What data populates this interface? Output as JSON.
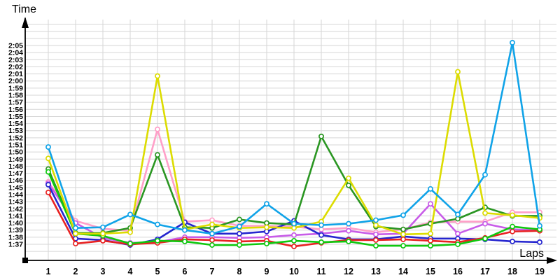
{
  "chart_data": {
    "type": "line",
    "title": "",
    "xlabel": "Laps",
    "ylabel": "Time",
    "legend": "none",
    "grid": true,
    "x": [
      1,
      2,
      3,
      4,
      5,
      6,
      7,
      8,
      9,
      10,
      11,
      12,
      13,
      14,
      15,
      16,
      17,
      18,
      19
    ],
    "y_axis": {
      "unit": "m:ss",
      "tick_labels": [
        "1:37",
        "1:38",
        "1:39",
        "1:40",
        "1:41",
        "1:42",
        "1:43",
        "1:44",
        "1:45",
        "1:46",
        "1:47",
        "1:48",
        "1:49",
        "1:50",
        "1:51",
        "1:52",
        "1:53",
        "1:54",
        "1:55",
        "1:56",
        "1:57",
        "1:58",
        "1:59",
        "2:00",
        "2:01",
        "2:02",
        "2:03",
        "2:04",
        "2:05"
      ],
      "tick_seconds_start": 97,
      "ylim_seconds": [
        96,
        128.5
      ]
    },
    "series": [
      {
        "name": "pink",
        "color": "#FF9FC8",
        "values_seconds": [
          105.8,
          100.3,
          99.2,
          98.9,
          113.2,
          100.2,
          100.4,
          99.6,
          99.6,
          99.5,
          99.1,
          99.3,
          98.7,
          99.1,
          100.1,
          100.2,
          100.2,
          101.5,
          101.5
        ]
      },
      {
        "name": "violet",
        "color": "#C85CE8",
        "values_seconds": [
          105.6,
          100.0,
          97.9,
          97.2,
          97.3,
          98.0,
          98.0,
          97.9,
          98.0,
          98.3,
          98.5,
          98.9,
          98.4,
          98.5,
          102.7,
          98.5,
          99.9,
          99.1,
          99.0
        ]
      },
      {
        "name": "navy-blue",
        "color": "#2525CF",
        "values_seconds": [
          105.4,
          97.8,
          97.6,
          96.9,
          97.7,
          100.1,
          98.5,
          98.5,
          98.8,
          100.3,
          98.3,
          97.7,
          97.7,
          98.1,
          97.8,
          97.8,
          97.7,
          97.4,
          97.3
        ]
      },
      {
        "name": "red",
        "color": "#E82222",
        "values_seconds": [
          104.3,
          97.1,
          97.5,
          97.0,
          97.2,
          97.7,
          97.6,
          97.4,
          97.5,
          96.7,
          97.2,
          97.6,
          97.6,
          97.7,
          97.5,
          97.3,
          97.9,
          98.8,
          98.9
        ]
      },
      {
        "name": "dark-green",
        "color": "#2A9622",
        "values_seconds": [
          107.6,
          98.6,
          98.6,
          99.3,
          109.6,
          99.4,
          99.3,
          100.5,
          100.0,
          99.8,
          112.2,
          105.3,
          99.5,
          99.1,
          99.9,
          100.6,
          102.2,
          101.0,
          101.0
        ]
      },
      {
        "name": "bright-green",
        "color": "#0FC80F",
        "values_seconds": [
          107.2,
          98.5,
          98.2,
          97.1,
          97.5,
          97.4,
          96.9,
          96.9,
          97.1,
          97.5,
          97.3,
          97.4,
          96.8,
          96.8,
          96.8,
          97.0,
          97.8,
          99.5,
          99.1
        ]
      },
      {
        "name": "yellow",
        "color": "#DCDC00",
        "values_seconds": [
          109.1,
          98.5,
          98.5,
          98.7,
          120.7,
          99.1,
          99.8,
          99.3,
          99.4,
          99.3,
          100.2,
          106.3,
          99.7,
          98.4,
          98.5,
          121.3,
          101.4,
          101.1,
          100.7
        ]
      },
      {
        "name": "sky-blue",
        "color": "#10A3E8",
        "values_seconds": [
          110.7,
          99.3,
          99.4,
          101.2,
          99.8,
          99.0,
          98.5,
          99.5,
          102.7,
          99.9,
          99.7,
          99.9,
          100.4,
          101.1,
          104.8,
          101.2,
          106.8,
          125.4,
          99.6
        ]
      }
    ],
    "style": {
      "grid_color": "#D6D6D6",
      "axis_color": "#000000",
      "marker": "open-circle",
      "background": "#FFFFFF"
    }
  }
}
